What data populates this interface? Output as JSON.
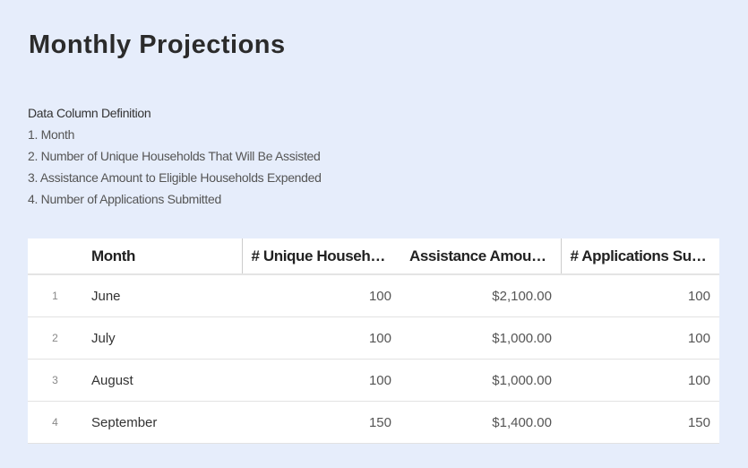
{
  "page": {
    "title": "Monthly Projections"
  },
  "definitions": {
    "heading": "Data Column Definition",
    "items": [
      "1. Month",
      "2. Number of Unique Households That Will Be Assisted",
      "3. Assistance Amount to Eligible Households Expended",
      "4. Number of Applications Submitted"
    ]
  },
  "table": {
    "columns": [
      "",
      "Month",
      "# Unique Households That Will Be Assisted",
      "Assistance Amount to Eligible Households Expended",
      "# Applications Submitted"
    ],
    "rows": [
      {
        "index": "1",
        "month": "June",
        "unique_households": "100",
        "assistance_amount": "$2,100.00",
        "applications": "100"
      },
      {
        "index": "2",
        "month": "July",
        "unique_households": "100",
        "assistance_amount": "$1,000.00",
        "applications": "100"
      },
      {
        "index": "3",
        "month": "August",
        "unique_households": "100",
        "assistance_amount": "$1,000.00",
        "applications": "100"
      },
      {
        "index": "4",
        "month": "September",
        "unique_households": "150",
        "assistance_amount": "$1,400.00",
        "applications": "150"
      }
    ]
  }
}
